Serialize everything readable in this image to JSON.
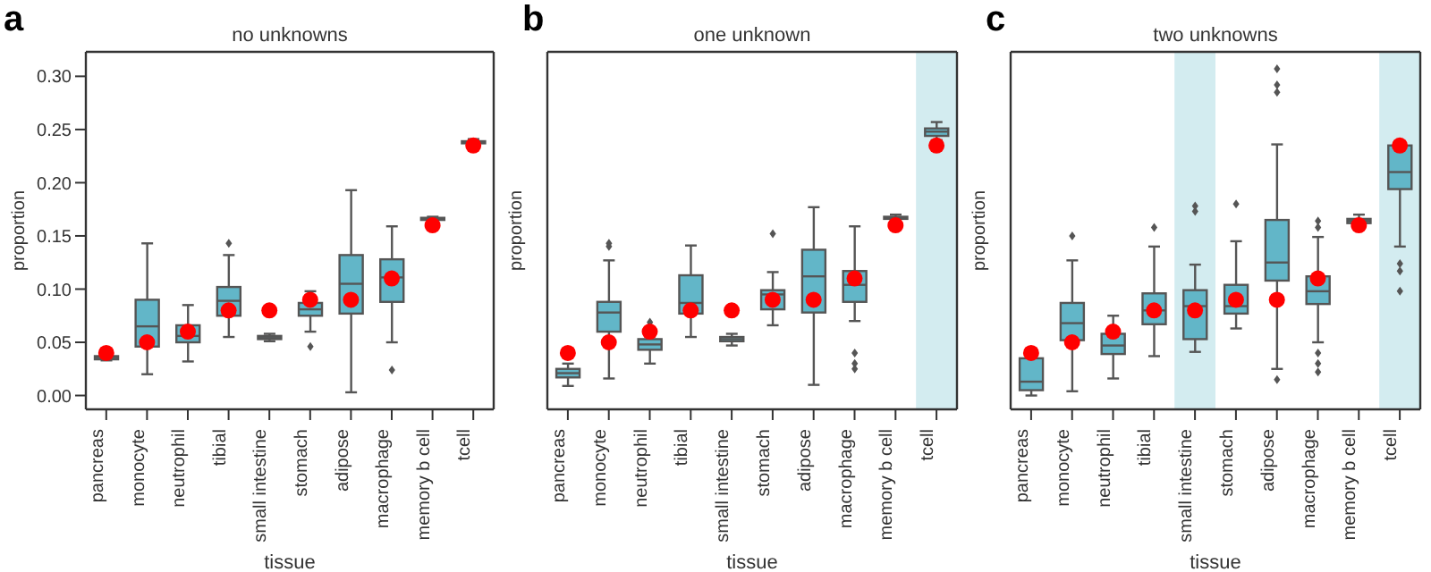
{
  "chart_data": [
    {
      "type": "box",
      "title": "no unknowns",
      "xlabel": "tissue",
      "ylabel": "proportion",
      "annotations": [
        "a"
      ],
      "categories": [
        "pancreas",
        "monocyte",
        "neutrophil",
        "tibial",
        "small intestine",
        "stomach",
        "adipose",
        "macrophage",
        "memory b cell",
        "tcell"
      ],
      "ylim": [
        -0.013,
        0.323
      ],
      "yticks": [
        {
          "value": 0,
          "label": "0.00"
        },
        0.05,
        {
          "value": 0.1,
          "label": "0.10"
        },
        0.15,
        {
          "value": 0.2,
          "label": "0.20"
        },
        0.25,
        {
          "value": 0.3,
          "label": "0.30"
        }
      ],
      "series": [
        {
          "type": "box",
          "color": "#62b6c8",
          "boxes": [
            {
              "low": 0.033,
              "q1": 0.034,
              "median": 0.036,
              "q3": 0.037,
              "high": 0.039
            },
            {
              "low": 0.02,
              "q1": 0.046,
              "median": 0.065,
              "q3": 0.09,
              "high": 0.143
            },
            {
              "low": 0.032,
              "q1": 0.05,
              "median": 0.056,
              "q3": 0.066,
              "high": 0.085
            },
            {
              "low": 0.055,
              "q1": 0.075,
              "median": 0.089,
              "q3": 0.102,
              "high": 0.132,
              "outliers": [
                0.143
              ]
            },
            {
              "low": 0.051,
              "q1": 0.053,
              "median": 0.054,
              "q3": 0.056,
              "high": 0.058
            },
            {
              "low": 0.06,
              "q1": 0.075,
              "median": 0.081,
              "q3": 0.087,
              "high": 0.098,
              "outliers": [
                0.046
              ]
            },
            {
              "low": 0.003,
              "q1": 0.077,
              "median": 0.105,
              "q3": 0.132,
              "high": 0.193
            },
            {
              "low": 0.05,
              "q1": 0.088,
              "median": 0.111,
              "q3": 0.128,
              "high": 0.159,
              "outliers": [
                0.024
              ]
            },
            {
              "low": 0.165,
              "q1": 0.165,
              "median": 0.166,
              "q3": 0.167,
              "high": 0.168
            },
            {
              "low": 0.236,
              "q1": 0.237,
              "median": 0.238,
              "q3": 0.239,
              "high": 0.241
            }
          ]
        },
        {
          "type": "scatter",
          "color": "#ff0000",
          "x": [
            "pancreas",
            "monocyte",
            "neutrophil",
            "tibial",
            "small intestine",
            "stomach",
            "adipose",
            "macrophage",
            "memory b cell",
            "tcell"
          ],
          "values": [
            0.04,
            0.05,
            0.06,
            0.08,
            0.08,
            0.09,
            0.09,
            0.11,
            0.16,
            0.235
          ]
        }
      ]
    },
    {
      "type": "box",
      "title": "one unknown",
      "xlabel": "tissue",
      "ylabel": "proportion",
      "annotations": [
        "b"
      ],
      "tick_labels": "x",
      "categories": [
        "pancreas",
        "monocyte",
        "neutrophil",
        "tibial",
        "small intestine",
        "stomach",
        "adipose",
        "macrophage",
        "memory b cell",
        "tcell"
      ],
      "ylim": [
        -0.013,
        0.323
      ],
      "yticks": [
        {
          "value": 0,
          "label": null
        },
        {
          "value": 0.05,
          "label": null
        },
        {
          "value": 0.1,
          "label": null
        },
        {
          "value": 0.15,
          "label": null
        },
        {
          "value": 0.2,
          "label": null
        },
        {
          "value": 0.25,
          "label": null
        },
        {
          "value": 0.3,
          "label": null
        }
      ],
      "bands": [
        {
          "axis": "x",
          "from": "tcell",
          "to": "tcell",
          "color": "#d3ecf0"
        }
      ],
      "series": [
        {
          "type": "box",
          "color": "#62b6c8",
          "boxes": [
            {
              "low": 0.009,
              "q1": 0.017,
              "median": 0.021,
              "q3": 0.025,
              "high": 0.03
            },
            {
              "low": 0.016,
              "q1": 0.06,
              "median": 0.078,
              "q3": 0.088,
              "high": 0.127,
              "outliers": [
                0.14,
                0.143
              ]
            },
            {
              "low": 0.03,
              "q1": 0.043,
              "median": 0.048,
              "q3": 0.053,
              "high": 0.06,
              "outliers": [
                0.066,
                0.069
              ]
            },
            {
              "low": 0.055,
              "q1": 0.077,
              "median": 0.087,
              "q3": 0.113,
              "high": 0.141
            },
            {
              "low": 0.047,
              "q1": 0.051,
              "median": 0.053,
              "q3": 0.055,
              "high": 0.058
            },
            {
              "low": 0.066,
              "q1": 0.081,
              "median": 0.095,
              "q3": 0.099,
              "high": 0.116,
              "outliers": [
                0.152
              ]
            },
            {
              "low": 0.01,
              "q1": 0.078,
              "median": 0.112,
              "q3": 0.137,
              "high": 0.177
            },
            {
              "low": 0.07,
              "q1": 0.088,
              "median": 0.104,
              "q3": 0.117,
              "high": 0.159,
              "outliers": [
                0.04,
                0.03,
                0.025
              ]
            },
            {
              "low": 0.165,
              "q1": 0.166,
              "median": 0.167,
              "q3": 0.168,
              "high": 0.17
            },
            {
              "low": 0.24,
              "q1": 0.244,
              "median": 0.248,
              "q3": 0.251,
              "high": 0.257
            }
          ]
        },
        {
          "type": "scatter",
          "color": "#ff0000",
          "x": [
            "pancreas",
            "monocyte",
            "neutrophil",
            "tibial",
            "small intestine",
            "stomach",
            "adipose",
            "macrophage",
            "memory b cell",
            "tcell"
          ],
          "values": [
            0.04,
            0.05,
            0.06,
            0.08,
            0.08,
            0.09,
            0.09,
            0.11,
            0.16,
            0.235
          ]
        }
      ]
    },
    {
      "type": "box",
      "title": "two unknowns",
      "xlabel": "tissue",
      "ylabel": "proportion",
      "annotations": [
        "c"
      ],
      "tick_labels": "x",
      "categories": [
        "pancreas",
        "monocyte",
        "neutrophil",
        "tibial",
        "small intestine",
        "stomach",
        "adipose",
        "macrophage",
        "memory b cell",
        "tcell"
      ],
      "ylim": [
        -0.013,
        0.323
      ],
      "yticks": [
        {
          "value": 0,
          "label": null
        },
        {
          "value": 0.05,
          "label": null
        },
        {
          "value": 0.1,
          "label": null
        },
        {
          "value": 0.15,
          "label": null
        },
        {
          "value": 0.2,
          "label": null
        },
        {
          "value": 0.25,
          "label": null
        },
        {
          "value": 0.3,
          "label": null
        }
      ],
      "bands": [
        {
          "axis": "x",
          "from": "small intestine",
          "to": "small intestine",
          "color": "#d3ecf0"
        },
        {
          "axis": "x",
          "from": "tcell",
          "to": "tcell",
          "color": "#d3ecf0"
        }
      ],
      "series": [
        {
          "type": "box",
          "color": "#62b6c8",
          "boxes": [
            {
              "low": 0,
              "q1": 0.005,
              "median": 0.013,
              "q3": 0.035,
              "high": 0.04
            },
            {
              "low": 0.004,
              "q1": 0.052,
              "median": 0.068,
              "q3": 0.087,
              "high": 0.127,
              "outliers": [
                0.15
              ]
            },
            {
              "low": 0.016,
              "q1": 0.039,
              "median": 0.047,
              "q3": 0.058,
              "high": 0.075
            },
            {
              "low": 0.037,
              "q1": 0.067,
              "median": 0.08,
              "q3": 0.096,
              "high": 0.14,
              "outliers": [
                0.158
              ]
            },
            {
              "low": 0.041,
              "q1": 0.053,
              "median": 0.084,
              "q3": 0.099,
              "high": 0.123,
              "outliers": [
                0.173,
                0.178
              ]
            },
            {
              "low": 0.063,
              "q1": 0.077,
              "median": 0.084,
              "q3": 0.104,
              "high": 0.145,
              "outliers": [
                0.18
              ]
            },
            {
              "low": 0.025,
              "q1": 0.108,
              "median": 0.125,
              "q3": 0.165,
              "high": 0.236,
              "outliers": [
                0.015,
                0.285,
                0.292,
                0.307
              ]
            },
            {
              "low": 0.05,
              "q1": 0.086,
              "median": 0.098,
              "q3": 0.112,
              "high": 0.149,
              "outliers": [
                0.158,
                0.164,
                0.04,
                0.03,
                0.022
              ]
            },
            {
              "low": 0.159,
              "q1": 0.162,
              "median": 0.164,
              "q3": 0.166,
              "high": 0.17
            },
            {
              "low": 0.14,
              "q1": 0.194,
              "median": 0.21,
              "q3": 0.235,
              "high": 0.238,
              "outliers": [
                0.124,
                0.117,
                0.098
              ]
            }
          ]
        },
        {
          "type": "scatter",
          "color": "#ff0000",
          "x": [
            "pancreas",
            "monocyte",
            "neutrophil",
            "tibial",
            "small intestine",
            "stomach",
            "adipose",
            "macrophage",
            "memory b cell",
            "tcell"
          ],
          "values": [
            0.04,
            0.05,
            0.06,
            0.08,
            0.08,
            0.09,
            0.09,
            0.11,
            0.16,
            0.235
          ]
        }
      ]
    }
  ]
}
